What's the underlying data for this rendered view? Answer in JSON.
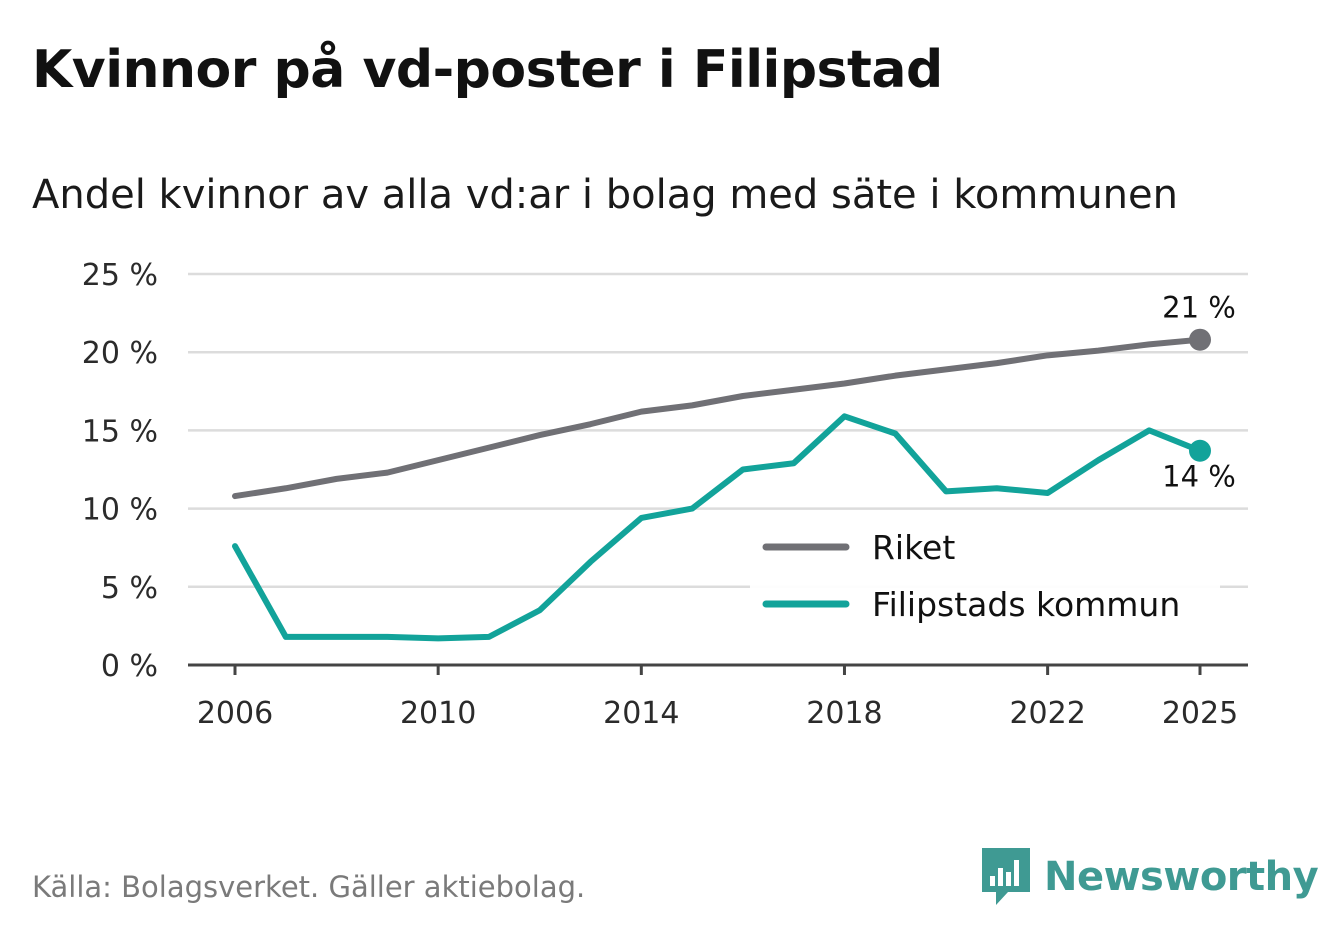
{
  "title": "Kvinnor på vd-poster i Filipstad",
  "subtitle": "Andel kvinnor av alla vd:ar i bolag med säte i kommunen",
  "source": "Källa: Bolagsverket. Gäller aktiebolag.",
  "brand": "Newsworthy",
  "colors": {
    "riket": "#707075",
    "filipstad": "#12a39a",
    "grid": "#dcdcdc",
    "axis": "#444444",
    "brand": "#3f9a93"
  },
  "chart_data": {
    "type": "line",
    "x": [
      2006,
      2007,
      2008,
      2009,
      2010,
      2011,
      2012,
      2013,
      2014,
      2015,
      2016,
      2017,
      2018,
      2019,
      2020,
      2021,
      2022,
      2023,
      2024,
      2025
    ],
    "series": [
      {
        "name": "Riket",
        "key": "riket",
        "values": [
          10.8,
          11.3,
          11.9,
          12.3,
          13.1,
          13.9,
          14.7,
          15.4,
          16.2,
          16.6,
          17.2,
          17.6,
          18.0,
          18.5,
          18.9,
          19.3,
          19.8,
          20.1,
          20.5,
          20.8
        ],
        "end_label": "21 %"
      },
      {
        "name": "Filipstads kommun",
        "key": "filipstad",
        "values": [
          7.6,
          1.8,
          1.8,
          1.8,
          1.7,
          1.8,
          3.5,
          6.6,
          9.4,
          10.0,
          12.5,
          12.9,
          15.9,
          14.8,
          11.1,
          11.3,
          11.0,
          13.1,
          15.0,
          13.7
        ],
        "end_label": "14 %"
      }
    ],
    "xticks": [
      2006,
      2010,
      2014,
      2018,
      2022,
      2025
    ],
    "xtick_labels": [
      "2006",
      "2010",
      "2014",
      "2018",
      "2022",
      "2025"
    ],
    "yticks": [
      0,
      5,
      10,
      15,
      20,
      25
    ],
    "ytick_labels": [
      "0 %",
      "5 %",
      "10 %",
      "15 %",
      "20 %",
      "25 %"
    ],
    "ylim": [
      0,
      25
    ],
    "xlim": [
      2006,
      2025
    ],
    "grid": true,
    "legend": {
      "position": "lower-right",
      "items": [
        "Riket",
        "Filipstads kommun"
      ]
    },
    "title": "Kvinnor på vd-poster i Filipstad",
    "xlabel": "",
    "ylabel": ""
  }
}
